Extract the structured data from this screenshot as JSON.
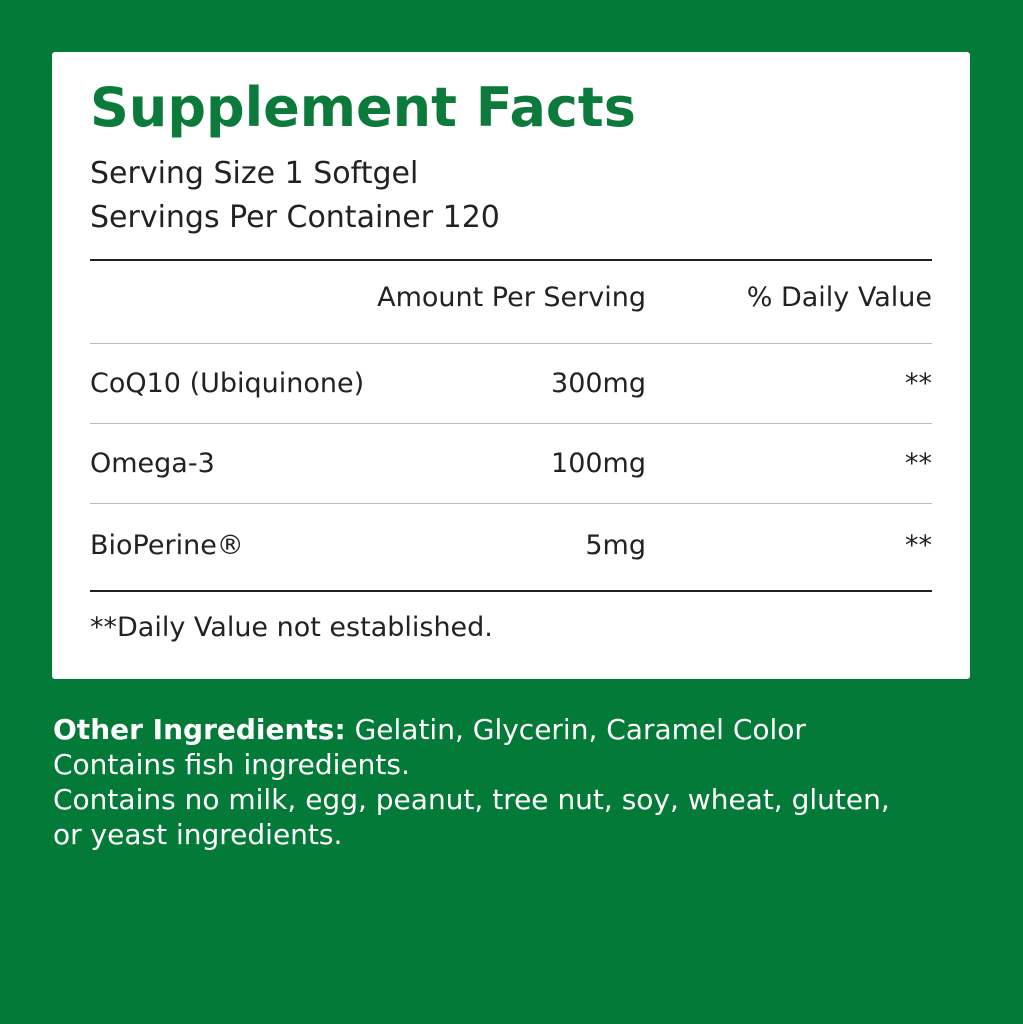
{
  "title": "Supplement Facts",
  "serving_size": "Serving Size 1 Softgel",
  "servings_per_container": "Servings Per Container 120",
  "headers": {
    "amount": "Amount Per Serving",
    "dv": "% Daily Value"
  },
  "rows": [
    {
      "name": "CoQ10 (Ubiquinone)",
      "amount": "300mg",
      "dv": "**"
    },
    {
      "name": "Omega-3",
      "amount": "100mg",
      "dv": "**"
    },
    {
      "name": "BioPerine®",
      "amount": "5mg",
      "dv": "**"
    }
  ],
  "footnote": "**Daily Value not established.",
  "other": {
    "label": "Other Ingredients:",
    "ingredients": " Gelatin, Glycerin, Caramel Color",
    "line2": "Contains fish ingredients.",
    "line3": "Contains no milk, egg, peanut, tree nut, soy, wheat, gluten,",
    "line4": "or yeast ingredients."
  },
  "colors": {
    "background": "#047a39",
    "title": "#0b7a3b"
  }
}
